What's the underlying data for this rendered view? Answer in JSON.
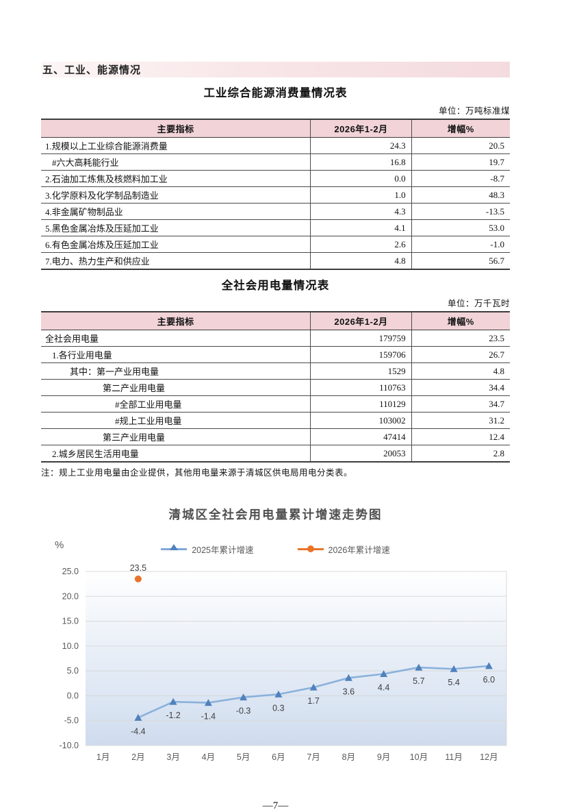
{
  "page": {
    "footer": "—7—"
  },
  "section": {
    "title": "五、工业、能源情况"
  },
  "energy_table": {
    "title": "工业综合能源消费量情况表",
    "unit": "单位：万吨标准煤",
    "headers": [
      "主要指标",
      "2026年1-2月",
      "增幅%"
    ],
    "rows": [
      {
        "label": "1.规模以上工业综合能源消费量",
        "value": "24.3",
        "growth": "20.5"
      },
      {
        "label": "#六大高耗能行业",
        "value": "16.8",
        "growth": "19.7"
      },
      {
        "label": "2.石油加工炼焦及核燃料加工业",
        "value": "0.0",
        "growth": "-8.7"
      },
      {
        "label": "3.化学原料及化学制品制造业",
        "value": "1.0",
        "growth": "48.3"
      },
      {
        "label": "4.非金属矿物制品业",
        "value": "4.3",
        "growth": "-13.5"
      },
      {
        "label": "5.黑色金属冶炼及压延加工业",
        "value": "4.1",
        "growth": "53.0"
      },
      {
        "label": "6.有色金属冶炼及压延加工业",
        "value": "2.6",
        "growth": "-1.0"
      },
      {
        "label": "7.电力、热力生产和供应业",
        "value": "4.8",
        "growth": "56.7"
      }
    ]
  },
  "electricity_table": {
    "title": "全社会用电量情况表",
    "unit": "单位：万千瓦时",
    "headers": [
      "主要指标",
      "2026年1-2月",
      "增幅%"
    ],
    "rows": [
      {
        "label": "全社会用电量",
        "value": "179759",
        "growth": "23.5"
      },
      {
        "label": "1.各行业用电量",
        "value": "159706",
        "growth": "26.7"
      },
      {
        "label": "其中：第一产业用电量",
        "value": "1529",
        "growth": "4.8"
      },
      {
        "label": "第二产业用电量",
        "value": "110763",
        "growth": "34.4"
      },
      {
        "label": "#全部工业用电量",
        "value": "110129",
        "growth": "34.7"
      },
      {
        "label": "#规上工业用电量",
        "value": "103002",
        "growth": "31.2"
      },
      {
        "label": "第三产业用电量",
        "value": "47414",
        "growth": "12.4"
      },
      {
        "label": "2.城乡居民生活用电量",
        "value": "20053",
        "growth": "2.8"
      }
    ],
    "footnote": "注：规上工业用电量由企业提供，其他用电量来源于清城区供电局用电分类表。"
  },
  "chart_data": {
    "type": "line",
    "title": "清城区全社会用电量累计增速走势图",
    "ylabel": "%",
    "categories": [
      "1月",
      "2月",
      "3月",
      "4月",
      "5月",
      "6月",
      "7月",
      "8月",
      "9月",
      "10月",
      "11月",
      "12月"
    ],
    "series": [
      {
        "name": "2025年累计增速",
        "line_color": "#8ab1db",
        "marker_color": "#4f81bd",
        "marker": "triangle",
        "values": [
          null,
          -4.4,
          -1.2,
          -1.4,
          -0.3,
          0.3,
          1.7,
          3.6,
          4.4,
          5.7,
          5.4,
          6.0
        ]
      },
      {
        "name": "2026年累计增速",
        "line_color": "#e8742a",
        "marker_color": "#e8742a",
        "marker": "circle",
        "values": [
          null,
          23.5,
          null,
          null,
          null,
          null,
          null,
          null,
          null,
          null,
          null,
          null
        ]
      }
    ],
    "ylim": [
      -10,
      25
    ],
    "ytick_step": 5,
    "grid": true,
    "legend_position": "top",
    "plot_bg_gradient": [
      "#ffffff",
      "#cfdcee"
    ],
    "gridline_color": "#d9d9d9",
    "tick_label_color": "#595959",
    "data_label_color": "#3f3f3f"
  }
}
